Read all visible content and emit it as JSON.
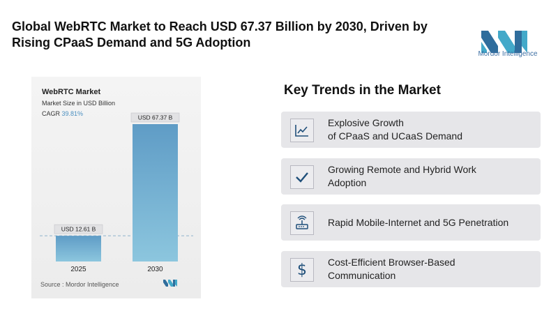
{
  "headline": {
    "line1": "Global WebRTC Market to Reach USD 67.37 Billion by 2030, Driven by",
    "line2": "Rising CPaaS Demand and 5G Adoption"
  },
  "brand": {
    "name": "Mordor Intelligence"
  },
  "chart_data": {
    "type": "bar",
    "title": "WebRTC Market",
    "subtitle": "Market Size in USD Billion",
    "cagr_label": "CAGR",
    "cagr_value": "39.81%",
    "categories": [
      "2025",
      "2030"
    ],
    "values": [
      12.61,
      67.37
    ],
    "data_labels": [
      "USD 12.61 B",
      "USD 67.37 B"
    ],
    "bar_color": "#6ea9cd",
    "baseline": "dashed line at 2025 value",
    "source": "Source : Mordor Intelligence"
  },
  "trends": {
    "title": "Key Trends in the Market",
    "items": [
      {
        "icon": "line-chart-icon",
        "line1": "Explosive Growth",
        "line2": "of CPaaS and UCaaS Demand"
      },
      {
        "icon": "checkmark-icon",
        "line1": "Growing Remote and Hybrid Work",
        "line2": "Adoption"
      },
      {
        "icon": "router-icon",
        "line1": "Rapid Mobile-Internet and 5G Penetration",
        "line2": ""
      },
      {
        "icon": "dollar-icon",
        "line1": "Cost-Efficient Browser-Based",
        "line2": "Communication"
      }
    ]
  },
  "colors": {
    "accent": "#1f4f7a",
    "bar": "#6ea9cd",
    "card_bg": "#e6e6e9"
  }
}
